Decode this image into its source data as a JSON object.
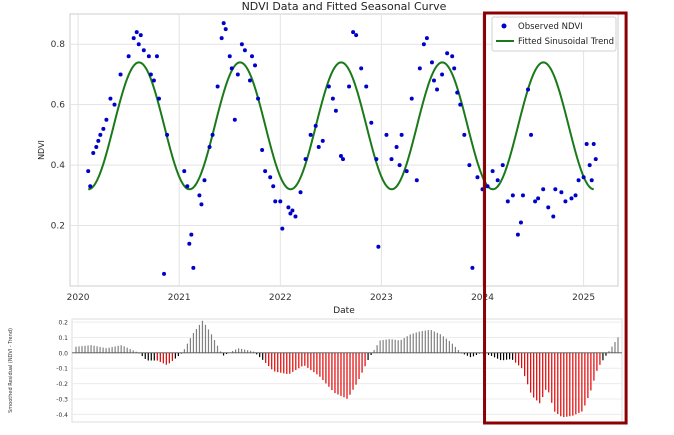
{
  "chart_data": [
    {
      "type": "scatter",
      "title": "NDVI Data and Fitted Seasonal Curve",
      "xlabel": "Date",
      "ylabel": "NDVI",
      "xlim": [
        2019.92,
        2025.34
      ],
      "ylim": [
        0.0,
        0.9
      ],
      "xticks": [
        2020,
        2021,
        2022,
        2023,
        2024,
        2025
      ],
      "xtick_labels": [
        "2020",
        "2021",
        "2022",
        "2023",
        "2024",
        "2025"
      ],
      "yticks": [
        0.2,
        0.4,
        0.6,
        0.8
      ],
      "ytick_labels": [
        "0.2",
        "0.4",
        "0.6",
        "0.8"
      ],
      "grid": true,
      "legend_position": "top-right",
      "series": [
        {
          "name": "Observed NDVI",
          "kind": "scatter",
          "color": "#0000cc",
          "points": [
            [
              2020.1,
              0.38
            ],
            [
              2020.12,
              0.33
            ],
            [
              2020.15,
              0.44
            ],
            [
              2020.18,
              0.46
            ],
            [
              2020.2,
              0.48
            ],
            [
              2020.22,
              0.5
            ],
            [
              2020.25,
              0.52
            ],
            [
              2020.28,
              0.55
            ],
            [
              2020.32,
              0.62
            ],
            [
              2020.36,
              0.6
            ],
            [
              2020.42,
              0.7
            ],
            [
              2020.5,
              0.76
            ],
            [
              2020.55,
              0.82
            ],
            [
              2020.58,
              0.84
            ],
            [
              2020.6,
              0.8
            ],
            [
              2020.62,
              0.83
            ],
            [
              2020.65,
              0.78
            ],
            [
              2020.7,
              0.76
            ],
            [
              2020.72,
              0.7
            ],
            [
              2020.75,
              0.68
            ],
            [
              2020.78,
              0.76
            ],
            [
              2020.8,
              0.62
            ],
            [
              2020.85,
              0.04
            ],
            [
              2020.88,
              0.5
            ],
            [
              2021.05,
              0.38
            ],
            [
              2021.08,
              0.33
            ],
            [
              2021.1,
              0.14
            ],
            [
              2021.12,
              0.17
            ],
            [
              2021.14,
              0.06
            ],
            [
              2021.2,
              0.3
            ],
            [
              2021.22,
              0.27
            ],
            [
              2021.25,
              0.35
            ],
            [
              2021.3,
              0.46
            ],
            [
              2021.33,
              0.5
            ],
            [
              2021.38,
              0.66
            ],
            [
              2021.42,
              0.82
            ],
            [
              2021.44,
              0.87
            ],
            [
              2021.46,
              0.85
            ],
            [
              2021.5,
              0.76
            ],
            [
              2021.52,
              0.72
            ],
            [
              2021.55,
              0.55
            ],
            [
              2021.58,
              0.7
            ],
            [
              2021.62,
              0.8
            ],
            [
              2021.65,
              0.78
            ],
            [
              2021.7,
              0.68
            ],
            [
              2021.72,
              0.76
            ],
            [
              2021.75,
              0.73
            ],
            [
              2021.78,
              0.62
            ],
            [
              2021.82,
              0.45
            ],
            [
              2021.85,
              0.38
            ],
            [
              2021.9,
              0.36
            ],
            [
              2021.93,
              0.33
            ],
            [
              2021.95,
              0.28
            ],
            [
              2022.0,
              0.28
            ],
            [
              2022.02,
              0.19
            ],
            [
              2022.08,
              0.26
            ],
            [
              2022.1,
              0.24
            ],
            [
              2022.12,
              0.25
            ],
            [
              2022.15,
              0.23
            ],
            [
              2022.2,
              0.31
            ],
            [
              2022.25,
              0.42
            ],
            [
              2022.3,
              0.5
            ],
            [
              2022.35,
              0.53
            ],
            [
              2022.38,
              0.46
            ],
            [
              2022.42,
              0.48
            ],
            [
              2022.48,
              0.66
            ],
            [
              2022.52,
              0.62
            ],
            [
              2022.55,
              0.58
            ],
            [
              2022.6,
              0.43
            ],
            [
              2022.62,
              0.42
            ],
            [
              2022.68,
              0.66
            ],
            [
              2022.72,
              0.84
            ],
            [
              2022.75,
              0.83
            ],
            [
              2022.8,
              0.72
            ],
            [
              2022.85,
              0.66
            ],
            [
              2022.9,
              0.54
            ],
            [
              2022.95,
              0.42
            ],
            [
              2022.97,
              0.13
            ],
            [
              2023.05,
              0.5
            ],
            [
              2023.1,
              0.42
            ],
            [
              2023.15,
              0.46
            ],
            [
              2023.18,
              0.4
            ],
            [
              2023.2,
              0.5
            ],
            [
              2023.25,
              0.38
            ],
            [
              2023.3,
              0.62
            ],
            [
              2023.35,
              0.35
            ],
            [
              2023.38,
              0.72
            ],
            [
              2023.42,
              0.8
            ],
            [
              2023.45,
              0.82
            ],
            [
              2023.5,
              0.74
            ],
            [
              2023.52,
              0.68
            ],
            [
              2023.55,
              0.65
            ],
            [
              2023.6,
              0.7
            ],
            [
              2023.65,
              0.77
            ],
            [
              2023.7,
              0.76
            ],
            [
              2023.72,
              0.72
            ],
            [
              2023.75,
              0.64
            ],
            [
              2023.78,
              0.6
            ],
            [
              2023.82,
              0.5
            ],
            [
              2023.87,
              0.4
            ],
            [
              2023.9,
              0.06
            ],
            [
              2023.95,
              0.36
            ],
            [
              2024.0,
              0.32
            ],
            [
              2024.05,
              0.33
            ],
            [
              2024.1,
              0.38
            ],
            [
              2024.15,
              0.35
            ],
            [
              2024.2,
              0.4
            ],
            [
              2024.25,
              0.28
            ],
            [
              2024.3,
              0.3
            ],
            [
              2024.35,
              0.17
            ],
            [
              2024.38,
              0.21
            ],
            [
              2024.4,
              0.3
            ],
            [
              2024.45,
              0.65
            ],
            [
              2024.48,
              0.5
            ],
            [
              2024.52,
              0.28
            ],
            [
              2024.55,
              0.29
            ],
            [
              2024.6,
              0.32
            ],
            [
              2024.65,
              0.26
            ],
            [
              2024.7,
              0.23
            ],
            [
              2024.72,
              0.32
            ],
            [
              2024.78,
              0.31
            ],
            [
              2024.82,
              0.28
            ],
            [
              2024.88,
              0.29
            ],
            [
              2024.92,
              0.3
            ],
            [
              2024.95,
              0.35
            ],
            [
              2025.0,
              0.36
            ],
            [
              2025.03,
              0.47
            ],
            [
              2025.06,
              0.4
            ],
            [
              2025.08,
              0.35
            ],
            [
              2025.1,
              0.47
            ],
            [
              2025.12,
              0.42
            ]
          ]
        },
        {
          "name": "Fitted Sinusoidal Trend",
          "kind": "line",
          "color": "#1a7a1a",
          "model": {
            "mean": 0.53,
            "amplitude": 0.21,
            "period": 1.0,
            "phase": 0.352
          },
          "x_range": [
            2020.1,
            2025.1
          ]
        }
      ],
      "highlight_box": {
        "x_from": 2024.02,
        "x_to": 2025.42,
        "color": "#8b0000"
      }
    },
    {
      "type": "bar",
      "ylabel": "Smoothed Residual (NDVI - Trend)",
      "ylim": [
        -0.45,
        0.22
      ],
      "yticks": [
        0.2,
        0.1,
        0.0,
        -0.1,
        -0.2,
        -0.3,
        -0.4
      ],
      "ytick_labels": [
        "0.2",
        "0.1",
        "0.0",
        "-0.1",
        "-0.2",
        "-0.3",
        "-0.4"
      ],
      "grid": true,
      "colors": {
        "positive": "#808080",
        "negative": "#000000",
        "anomaly": "#e00000"
      },
      "anomaly_threshold": -0.05,
      "profile": [
        [
          2020.0,
          0.04
        ],
        [
          2020.15,
          0.05
        ],
        [
          2020.3,
          0.03
        ],
        [
          2020.45,
          0.05
        ],
        [
          2020.55,
          0.02
        ],
        [
          2020.62,
          0.0
        ],
        [
          2020.7,
          -0.05
        ],
        [
          2020.8,
          -0.05
        ],
        [
          2020.9,
          -0.08
        ],
        [
          2021.05,
          0.0
        ],
        [
          2021.15,
          0.12
        ],
        [
          2021.25,
          0.21
        ],
        [
          2021.33,
          0.13
        ],
        [
          2021.45,
          -0.02
        ],
        [
          2021.6,
          0.03
        ],
        [
          2021.75,
          0.01
        ],
        [
          2021.85,
          -0.05
        ],
        [
          2021.95,
          -0.12
        ],
        [
          2022.1,
          -0.14
        ],
        [
          2022.25,
          -0.08
        ],
        [
          2022.4,
          -0.15
        ],
        [
          2022.55,
          -0.26
        ],
        [
          2022.68,
          -0.3
        ],
        [
          2022.78,
          -0.19
        ],
        [
          2022.88,
          -0.05
        ],
        [
          2023.0,
          0.08
        ],
        [
          2023.1,
          0.09
        ],
        [
          2023.2,
          0.08
        ],
        [
          2023.3,
          0.12
        ],
        [
          2023.4,
          0.14
        ],
        [
          2023.5,
          0.15
        ],
        [
          2023.6,
          0.12
        ],
        [
          2023.7,
          0.07
        ],
        [
          2023.8,
          0.0
        ],
        [
          2023.9,
          -0.03
        ],
        [
          2024.0,
          0.0
        ],
        [
          2024.1,
          -0.02
        ],
        [
          2024.2,
          -0.05
        ],
        [
          2024.3,
          -0.04
        ],
        [
          2024.4,
          -0.1
        ],
        [
          2024.5,
          -0.28
        ],
        [
          2024.58,
          -0.33
        ],
        [
          2024.65,
          -0.22
        ],
        [
          2024.72,
          -0.38
        ],
        [
          2024.8,
          -0.42
        ],
        [
          2024.9,
          -0.41
        ],
        [
          2025.0,
          -0.38
        ],
        [
          2025.08,
          -0.25
        ],
        [
          2025.15,
          -0.1
        ],
        [
          2025.25,
          0.0
        ],
        [
          2025.35,
          0.1
        ]
      ]
    }
  ]
}
